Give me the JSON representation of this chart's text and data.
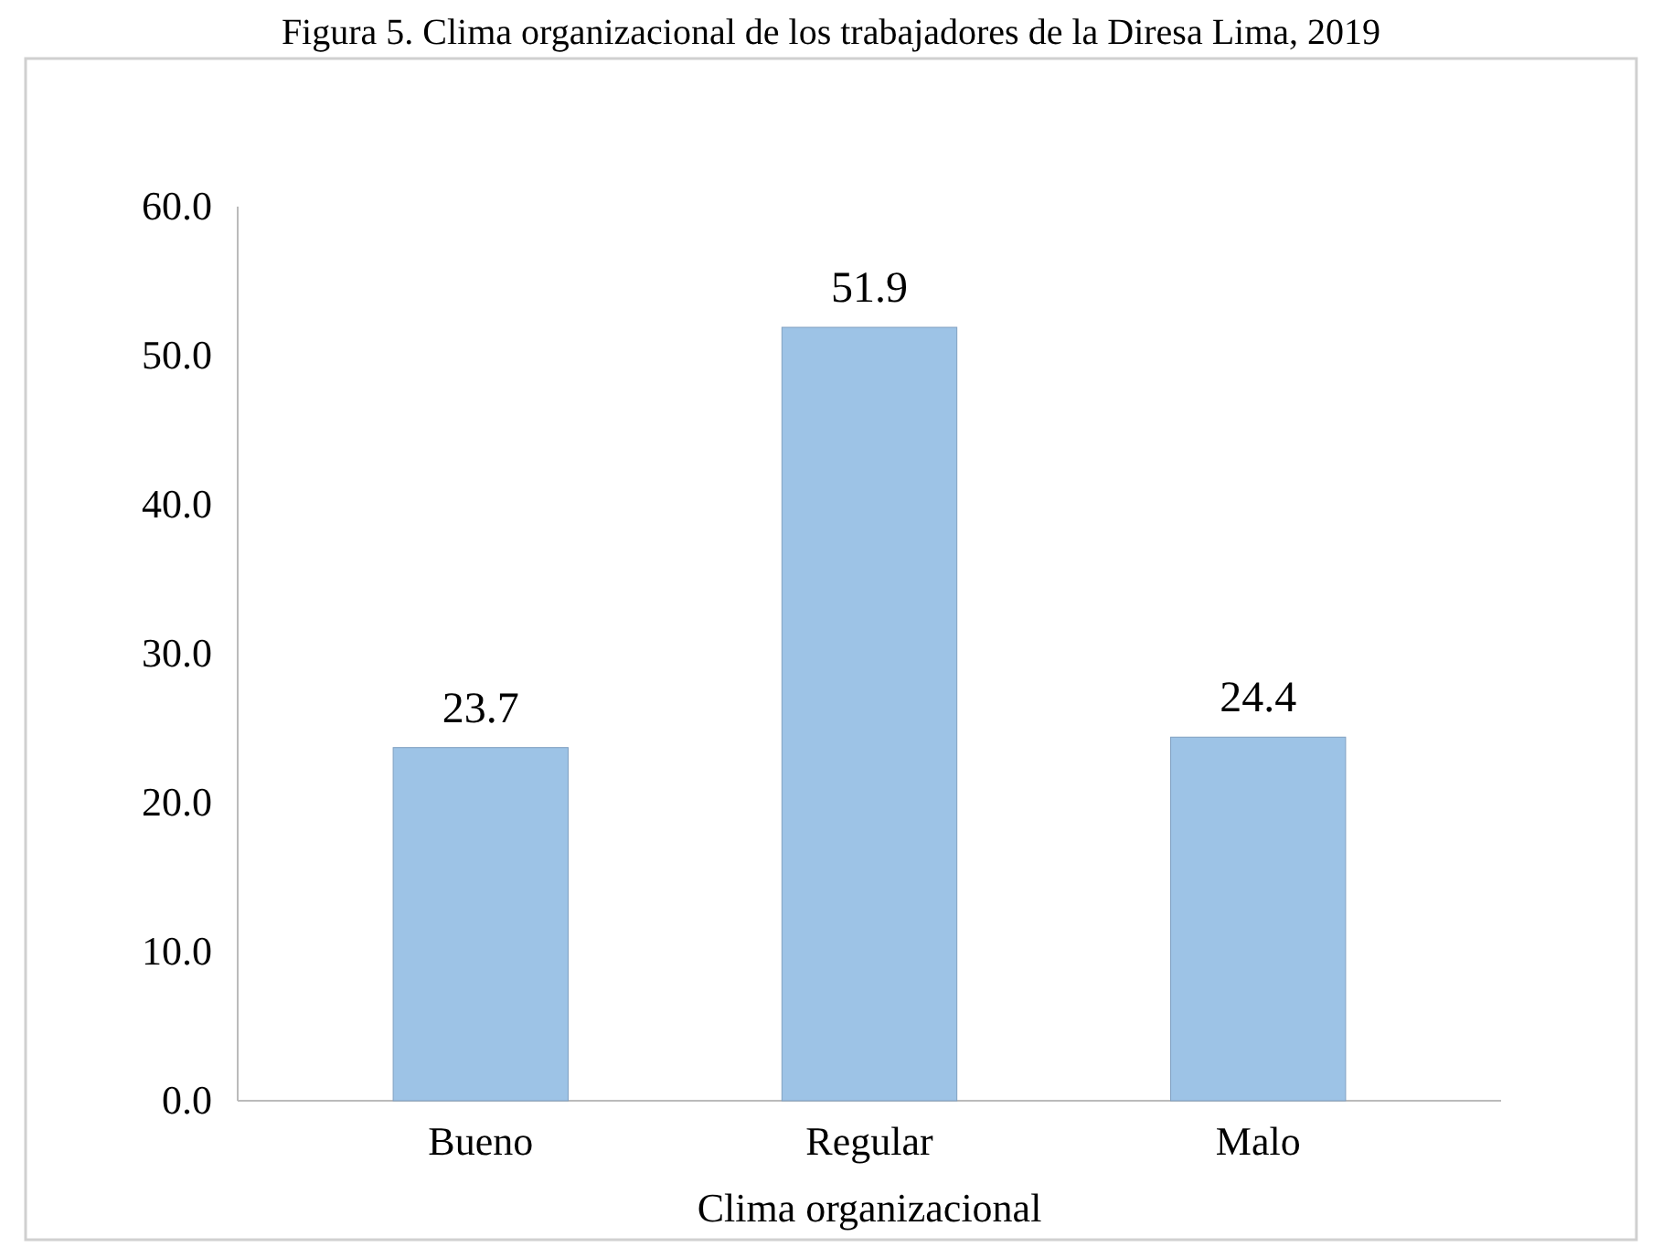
{
  "chart_data": {
    "type": "bar",
    "title": "Figura 5. Clima organizacional de los trabajadores de la Diresa Lima, 2019",
    "xlabel": "Clima organizacional",
    "categories": [
      "Bueno",
      "Regular",
      "Malo"
    ],
    "values": [
      23.7,
      51.9,
      24.4
    ],
    "color": "#9dc3e6",
    "ylim": [
      0,
      60
    ],
    "yticks": [
      {
        "value": 0,
        "label": "0.0"
      },
      {
        "value": 10,
        "label": "10.0"
      },
      {
        "value": 20,
        "label": "20.0"
      },
      {
        "value": 30,
        "label": "30.0"
      },
      {
        "value": 40,
        "label": "40.0"
      },
      {
        "value": 50,
        "label": "50.0"
      },
      {
        "value": 60,
        "label": "60.0"
      }
    ],
    "data_labels": true
  }
}
